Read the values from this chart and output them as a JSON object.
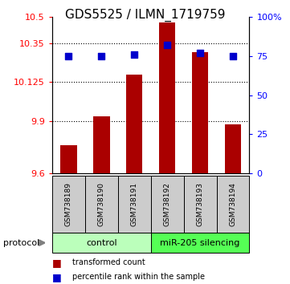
{
  "title": "GDS5525 / ILMN_1719759",
  "samples": [
    "GSM738189",
    "GSM738190",
    "GSM738191",
    "GSM738192",
    "GSM738193",
    "GSM738194"
  ],
  "transformed_count": [
    9.76,
    9.93,
    10.17,
    10.47,
    10.3,
    9.88
  ],
  "percentile_rank": [
    75,
    75,
    76,
    82,
    77,
    75
  ],
  "ylim_left": [
    9.6,
    10.5
  ],
  "ylim_right": [
    0,
    100
  ],
  "yticks_left": [
    9.6,
    9.9,
    10.125,
    10.35,
    10.5
  ],
  "ytick_labels_left": [
    "9.6",
    "9.9",
    "10.125",
    "10.35",
    "10.5"
  ],
  "yticks_right": [
    0,
    25,
    50,
    75,
    100
  ],
  "ytick_labels_right": [
    "0",
    "25",
    "50",
    "75",
    "100%"
  ],
  "hlines": [
    9.9,
    10.125,
    10.35
  ],
  "bar_color": "#aa0000",
  "dot_color": "#0000cc",
  "bar_width": 0.5,
  "control_label": "control",
  "mirna_label": "miR-205 silencing",
  "control_color": "#bbffbb",
  "mirna_color": "#55ff55",
  "protocol_label": "protocol",
  "legend_bar_label": "transformed count",
  "legend_dot_label": "percentile rank within the sample",
  "sample_box_color": "#cccccc",
  "title_fontsize": 11,
  "tick_label_fontsize": 8,
  "dot_size": 28
}
